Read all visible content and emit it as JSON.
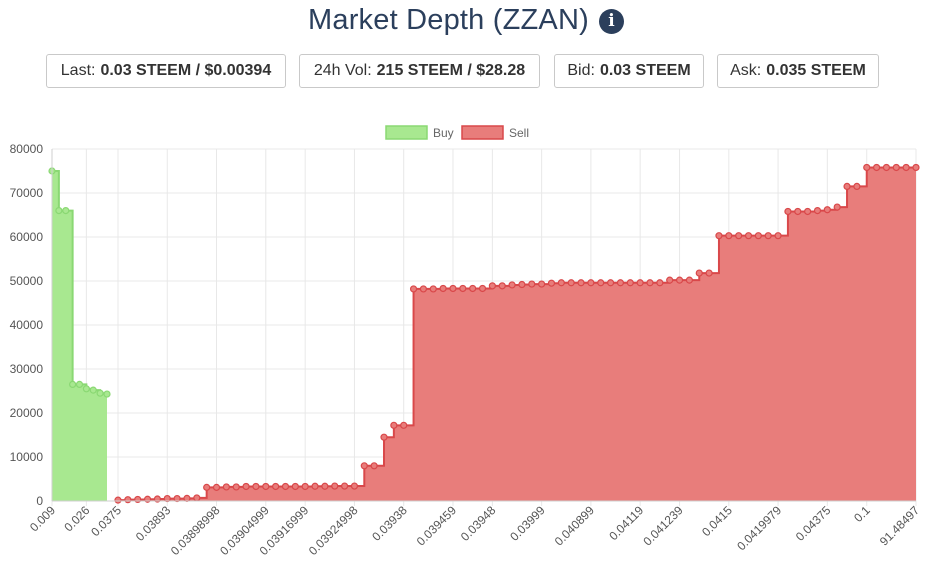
{
  "header": {
    "title": "Market Depth (ZZAN)",
    "info_icon": "info-circle-icon"
  },
  "stats": [
    {
      "label": "Last:",
      "value": "0.03 STEEM / $0.00394"
    },
    {
      "label": "24h Vol:",
      "value": "215 STEEM / $28.28"
    },
    {
      "label": "Bid:",
      "value": "0.03 STEEM"
    },
    {
      "label": "Ask:",
      "value": "0.035 STEEM"
    }
  ],
  "colors": {
    "buy_fill": "#a8e890",
    "buy_line": "#8ad873",
    "sell_fill": "#e87d7b",
    "sell_line": "#d9484a",
    "grid": "#e8e8e8",
    "title": "#2b3f5c"
  },
  "chart_data": {
    "type": "area",
    "stepped": true,
    "legend": {
      "position": "top-center",
      "entries": [
        "Buy",
        "Sell"
      ]
    },
    "grid": true,
    "ylim": [
      0,
      80000
    ],
    "y_ticks": [
      "0",
      "10000",
      "20000",
      "30000",
      "40000",
      "50000",
      "60000",
      "70000",
      "80000"
    ],
    "x_tick_labels": [
      "0.009",
      "0.026",
      "0.0375",
      "0.03893",
      "0.03898998",
      "0.03904999",
      "0.03916999",
      "0.03924998",
      "0.03938",
      "0.039459",
      "0.03948",
      "0.03999",
      "0.040899",
      "0.04119",
      "0.041239",
      "0.0415",
      "0.0419979",
      "0.04375",
      "0.1",
      "91.48497"
    ],
    "series": [
      {
        "name": "Buy",
        "values": [
          75000,
          66000,
          66000,
          26500,
          26500,
          25500,
          25200,
          24500,
          24300
        ]
      },
      {
        "name": "Sell",
        "values": [
          200,
          300,
          350,
          400,
          450,
          550,
          550,
          600,
          700,
          3100,
          3100,
          3200,
          3200,
          3300,
          3300,
          3300,
          3300,
          3300,
          3300,
          3300,
          3350,
          3350,
          3400,
          3400,
          3400,
          8000,
          8000,
          14500,
          17200,
          17200,
          48200,
          48200,
          48200,
          48300,
          48300,
          48300,
          48300,
          48300,
          48900,
          48900,
          49100,
          49200,
          49300,
          49300,
          49500,
          49600,
          49600,
          49600,
          49600,
          49600,
          49600,
          49600,
          49600,
          49600,
          49600,
          49600,
          50200,
          50200,
          50200,
          51800,
          51800,
          60300,
          60300,
          60300,
          60300,
          60300,
          60300,
          60300,
          65800,
          65800,
          65800,
          66000,
          66200,
          66800,
          71500,
          71500,
          75800,
          75800,
          75800,
          75800,
          75800,
          75800
        ]
      }
    ]
  }
}
